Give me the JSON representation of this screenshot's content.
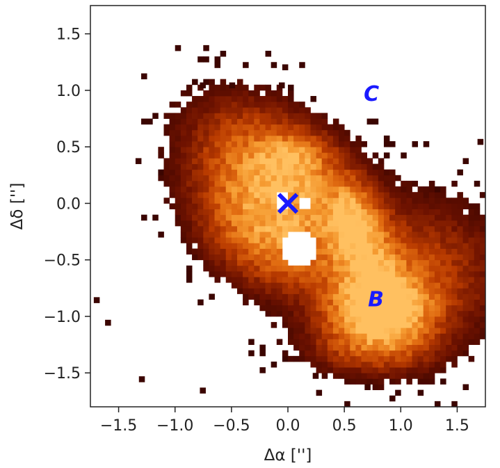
{
  "chart_data": {
    "type": "heatmap",
    "title": "",
    "xlabel": "Δα ['']",
    "ylabel": "Δδ ['']",
    "xlim": [
      -1.75,
      1.75
    ],
    "ylim": [
      -1.8,
      1.75
    ],
    "x_ticks": [
      -1.5,
      -1.0,
      -0.5,
      0.0,
      0.5,
      1.0,
      1.5
    ],
    "x_tick_labels": [
      "−1.5",
      "−1.0",
      "−0.5",
      "0.0",
      "0.5",
      "1.0",
      "1.5"
    ],
    "y_ticks": [
      -1.5,
      -1.0,
      -0.5,
      0.0,
      0.5,
      1.0,
      1.5
    ],
    "y_tick_labels": [
      "−1.5",
      "−1.0",
      "−0.5",
      "0.0",
      "0.5",
      "1.0",
      "1.5"
    ],
    "colormap": "afmhot",
    "colormap_stops": [
      "#2a0000",
      "#6e1200",
      "#b83a00",
      "#e06a10",
      "#f59a30",
      "#ffc060"
    ],
    "grid": false,
    "pixel_size_arcsec": 0.05,
    "emission_components": [
      {
        "x": -0.1,
        "y": 0.25,
        "sx": 0.55,
        "sy": 0.35,
        "angle_deg": -35,
        "amp": 0.75
      },
      {
        "x": 0.05,
        "y": 0.38,
        "sx": 0.2,
        "sy": 0.15,
        "angle_deg": 0,
        "amp": 0.35
      },
      {
        "x": 0.55,
        "y": -0.15,
        "sx": 0.12,
        "sy": 0.2,
        "angle_deg": 0,
        "amp": 0.5
      },
      {
        "x": 0.72,
        "y": -0.5,
        "sx": 0.18,
        "sy": 0.38,
        "angle_deg": 20,
        "amp": 0.55
      },
      {
        "x": 0.8,
        "y": -0.95,
        "sx": 0.28,
        "sy": 0.2,
        "angle_deg": 0,
        "amp": 0.95
      },
      {
        "x": 1.1,
        "y": -0.7,
        "sx": 0.55,
        "sy": 0.45,
        "angle_deg": 25,
        "amp": 0.45
      },
      {
        "x": -0.2,
        "y": -0.3,
        "sx": 0.45,
        "sy": 0.3,
        "angle_deg": -30,
        "amp": 0.55
      },
      {
        "x": 0.7,
        "y": -1.3,
        "sx": 0.4,
        "sy": 0.15,
        "angle_deg": 0,
        "amp": 0.25
      }
    ],
    "holes": [
      {
        "x": 0.1,
        "y": -0.4,
        "r": 0.15
      },
      {
        "x": -0.05,
        "y": 0.02,
        "r": 0.07
      },
      {
        "x": 0.15,
        "y": 0.0,
        "r": 0.05
      }
    ],
    "annotations": [
      {
        "label": "B",
        "x": 0.78,
        "y": -0.85,
        "color": "#1a1aff"
      },
      {
        "label": "C",
        "x": 0.74,
        "y": 0.97,
        "color": "#1a1aff"
      }
    ],
    "markers": [
      {
        "symbol": "x",
        "x": 0.0,
        "y": 0.0,
        "color": "#1a1aff"
      }
    ]
  }
}
